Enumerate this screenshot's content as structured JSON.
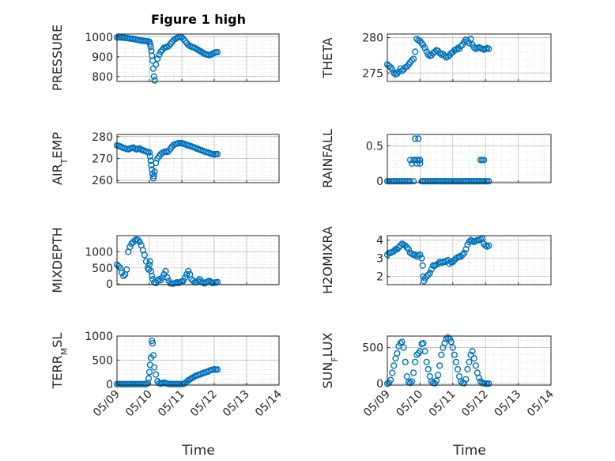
{
  "figure_title": "Figure 1 high",
  "x_axis_label": "Time",
  "x_tick_labels": [
    "05/09",
    "05/10",
    "05/11",
    "05/12",
    "05/13",
    "05/14"
  ],
  "marker_color": "#0072BD",
  "chart_data": [
    {
      "type": "scatter",
      "ylabel": "PRESSURE",
      "ylim": [
        775,
        1015
      ],
      "yticks": [
        800,
        900,
        1000
      ],
      "xlim": [
        0,
        5
      ],
      "grid": true,
      "x": [
        0.0,
        0.05,
        0.1,
        0.15,
        0.2,
        0.25,
        0.3,
        0.35,
        0.4,
        0.45,
        0.5,
        0.55,
        0.6,
        0.65,
        0.7,
        0.75,
        0.8,
        0.85,
        0.9,
        0.95,
        1.0,
        1.02,
        1.04,
        1.06,
        1.08,
        1.1,
        1.12,
        1.14,
        1.16,
        1.2,
        1.25,
        1.3,
        1.35,
        1.4,
        1.45,
        1.5,
        1.55,
        1.6,
        1.65,
        1.7,
        1.75,
        1.8,
        1.85,
        1.9,
        1.95,
        2.0,
        2.05,
        2.1,
        2.15,
        2.2,
        2.25,
        2.3,
        2.35,
        2.4,
        2.45,
        2.5,
        2.55,
        2.6,
        2.65,
        2.7,
        2.75,
        2.8,
        2.85,
        2.9,
        2.95,
        3.0,
        3.05,
        3.1
      ],
      "y": [
        998,
        998,
        998,
        997,
        997,
        996,
        995,
        994,
        992,
        991,
        990,
        989,
        987,
        985,
        983,
        982,
        981,
        980,
        979,
        978,
        976,
        965,
        950,
        930,
        905,
        880,
        840,
        800,
        780,
        860,
        890,
        910,
        925,
        935,
        945,
        948,
        950,
        955,
        965,
        975,
        985,
        990,
        995,
        998,
        1000,
        998,
        990,
        980,
        970,
        960,
        955,
        950,
        948,
        945,
        940,
        935,
        930,
        925,
        920,
        915,
        912,
        910,
        908,
        910,
        915,
        920,
        922,
        923
      ]
    },
    {
      "type": "scatter",
      "ylabel": "THETA",
      "ylim": [
        273.8,
        280.5
      ],
      "yticks": [
        275,
        280
      ],
      "xlim": [
        0,
        5
      ],
      "grid": true,
      "x": [
        0.0,
        0.05,
        0.1,
        0.15,
        0.2,
        0.25,
        0.3,
        0.35,
        0.4,
        0.45,
        0.5,
        0.55,
        0.6,
        0.65,
        0.7,
        0.75,
        0.8,
        0.85,
        0.9,
        0.95,
        1.0,
        1.05,
        1.1,
        1.15,
        1.2,
        1.25,
        1.3,
        1.35,
        1.4,
        1.45,
        1.5,
        1.55,
        1.6,
        1.65,
        1.7,
        1.75,
        1.8,
        1.85,
        1.9,
        1.95,
        2.0,
        2.05,
        2.1,
        2.15,
        2.2,
        2.25,
        2.3,
        2.35,
        2.4,
        2.45,
        2.5,
        2.55,
        2.6,
        2.65,
        2.7,
        2.75,
        2.8,
        2.85,
        2.9,
        2.95,
        3.0,
        3.05,
        3.1
      ],
      "y": [
        276.2,
        276.0,
        275.8,
        275.5,
        275.0,
        274.8,
        274.9,
        275.2,
        275.6,
        275.3,
        275.5,
        275.8,
        275.9,
        276.2,
        276.5,
        276.8,
        277.0,
        278.0,
        279.8,
        279.6,
        279.5,
        279.2,
        278.9,
        278.5,
        278.0,
        277.6,
        277.4,
        277.5,
        277.8,
        278.0,
        278.2,
        278.1,
        277.8,
        277.6,
        277.7,
        277.4,
        277.2,
        277.3,
        277.5,
        277.8,
        277.9,
        278.2,
        278.3,
        278.5,
        278.4,
        278.8,
        279.0,
        279.4,
        279.7,
        279.5,
        279.2,
        279.8,
        279.0,
        278.6,
        278.4,
        278.5,
        278.6,
        278.5,
        278.4,
        278.3,
        278.4,
        278.5,
        278.4
      ]
    },
    {
      "type": "scatter",
      "ylabel": "AIR_TEMP",
      "ylim": [
        259,
        281
      ],
      "yticks": [
        260,
        270,
        280
      ],
      "xlim": [
        0,
        5
      ],
      "grid": true,
      "x": [
        0.0,
        0.05,
        0.1,
        0.15,
        0.2,
        0.25,
        0.3,
        0.35,
        0.4,
        0.45,
        0.5,
        0.55,
        0.6,
        0.65,
        0.7,
        0.75,
        0.8,
        0.85,
        0.9,
        0.95,
        1.0,
        1.02,
        1.04,
        1.06,
        1.08,
        1.1,
        1.12,
        1.14,
        1.16,
        1.2,
        1.25,
        1.3,
        1.35,
        1.4,
        1.45,
        1.5,
        1.55,
        1.6,
        1.65,
        1.7,
        1.75,
        1.8,
        1.85,
        1.9,
        1.95,
        2.0,
        2.05,
        2.1,
        2.15,
        2.2,
        2.25,
        2.3,
        2.35,
        2.4,
        2.45,
        2.5,
        2.55,
        2.6,
        2.65,
        2.7,
        2.75,
        2.8,
        2.85,
        2.9,
        2.95,
        3.0,
        3.05,
        3.1
      ],
      "y": [
        276.0,
        275.8,
        275.5,
        275.2,
        274.8,
        274.6,
        274.4,
        274.2,
        274.5,
        274.8,
        275.0,
        274.6,
        274.2,
        274.4,
        274.6,
        274.0,
        273.8,
        273.5,
        273.2,
        273.0,
        272.8,
        271.0,
        269.0,
        267.0,
        265.0,
        263.0,
        261.0,
        262.0,
        264.0,
        268.0,
        270.0,
        271.0,
        272.0,
        272.5,
        273.0,
        273.2,
        273.0,
        273.5,
        274.5,
        275.5,
        276.2,
        276.6,
        276.8,
        277.0,
        277.0,
        277.0,
        276.8,
        276.5,
        276.2,
        276.0,
        275.8,
        275.5,
        275.2,
        275.0,
        274.6,
        274.4,
        274.0,
        273.8,
        273.5,
        273.2,
        273.0,
        272.8,
        272.5,
        272.2,
        272.0,
        271.8,
        272.0,
        272.0
      ]
    },
    {
      "type": "scatter",
      "ylabel": "RAINFALL",
      "ylim": [
        -0.02,
        0.66
      ],
      "yticks": [
        0,
        0.5
      ],
      "xlim": [
        0,
        5
      ],
      "grid": true,
      "x": [
        0.0,
        0.05,
        0.1,
        0.15,
        0.2,
        0.25,
        0.3,
        0.35,
        0.4,
        0.45,
        0.5,
        0.55,
        0.6,
        0.65,
        0.7,
        0.7,
        0.75,
        0.8,
        0.8,
        0.85,
        0.85,
        0.9,
        0.9,
        0.95,
        0.95,
        1.0,
        1.0,
        1.05,
        1.1,
        1.15,
        1.2,
        1.25,
        1.3,
        1.35,
        1.4,
        1.45,
        1.5,
        1.55,
        1.6,
        1.65,
        1.7,
        1.75,
        1.8,
        1.85,
        1.9,
        1.95,
        2.0,
        2.05,
        2.1,
        2.15,
        2.2,
        2.25,
        2.3,
        2.35,
        2.4,
        2.45,
        2.5,
        2.55,
        2.6,
        2.65,
        2.7,
        2.75,
        2.8,
        2.85,
        2.85,
        2.9,
        2.9,
        2.95,
        2.95,
        3.0,
        3.05,
        3.1
      ],
      "y": [
        0,
        0,
        0,
        0,
        0,
        0,
        0,
        0,
        0,
        0,
        0,
        0,
        0,
        0,
        0,
        0.3,
        0.25,
        0,
        0.3,
        0.3,
        0.6,
        0.25,
        0.3,
        0.3,
        0.6,
        0.25,
        0.3,
        0,
        0,
        0,
        0,
        0,
        0,
        0,
        0,
        0,
        0,
        0,
        0,
        0,
        0,
        0,
        0,
        0,
        0,
        0,
        0,
        0,
        0,
        0,
        0,
        0,
        0,
        0,
        0,
        0,
        0,
        0,
        0,
        0,
        0,
        0,
        0,
        0,
        0.3,
        0,
        0.3,
        0,
        0.3,
        0,
        0,
        0
      ]
    },
    {
      "type": "scatter",
      "ylabel": "MIXDEPTH",
      "ylim": [
        -20,
        1500
      ],
      "yticks": [
        0,
        500,
        1000
      ],
      "xlim": [
        0,
        5
      ],
      "grid": true,
      "x": [
        0.0,
        0.05,
        0.1,
        0.15,
        0.2,
        0.25,
        0.3,
        0.35,
        0.4,
        0.45,
        0.5,
        0.55,
        0.6,
        0.65,
        0.7,
        0.75,
        0.8,
        0.85,
        0.9,
        0.95,
        0.98,
        1.0,
        1.02,
        1.05,
        1.08,
        1.1,
        1.15,
        1.2,
        1.25,
        1.3,
        1.35,
        1.4,
        1.45,
        1.5,
        1.55,
        1.6,
        1.65,
        1.7,
        1.75,
        1.8,
        1.85,
        1.9,
        1.95,
        2.0,
        2.05,
        2.1,
        2.15,
        2.2,
        2.25,
        2.3,
        2.35,
        2.4,
        2.45,
        2.5,
        2.55,
        2.6,
        2.65,
        2.7,
        2.75,
        2.8,
        2.85,
        2.9,
        2.95,
        3.0,
        3.05,
        3.1
      ],
      "y": [
        600,
        550,
        500,
        350,
        250,
        300,
        450,
        1000,
        1150,
        1250,
        1300,
        1350,
        1380,
        1360,
        1300,
        1200,
        1050,
        900,
        700,
        500,
        450,
        600,
        700,
        400,
        250,
        150,
        50,
        30,
        100,
        150,
        120,
        200,
        300,
        400,
        200,
        100,
        20,
        10,
        15,
        30,
        50,
        30,
        60,
        80,
        100,
        200,
        300,
        400,
        300,
        150,
        100,
        50,
        60,
        100,
        150,
        80,
        40,
        20,
        50,
        70,
        100,
        60,
        30,
        40,
        50,
        60
      ]
    },
    {
      "type": "scatter",
      "ylabel": "H2OMIXRA",
      "ylim": [
        1.55,
        4.25
      ],
      "yticks": [
        2,
        3,
        4
      ],
      "xlim": [
        0,
        5
      ],
      "grid": true,
      "x": [
        0.0,
        0.05,
        0.1,
        0.15,
        0.2,
        0.25,
        0.3,
        0.35,
        0.4,
        0.45,
        0.5,
        0.55,
        0.6,
        0.65,
        0.7,
        0.75,
        0.8,
        0.85,
        0.9,
        0.95,
        1.0,
        1.05,
        1.08,
        1.1,
        1.12,
        1.15,
        1.2,
        1.25,
        1.3,
        1.35,
        1.4,
        1.45,
        1.5,
        1.55,
        1.6,
        1.65,
        1.7,
        1.75,
        1.8,
        1.85,
        1.9,
        1.95,
        2.0,
        2.05,
        2.1,
        2.15,
        2.2,
        2.25,
        2.3,
        2.35,
        2.4,
        2.45,
        2.5,
        2.55,
        2.6,
        2.65,
        2.7,
        2.75,
        2.8,
        2.85,
        2.9,
        2.95,
        3.0,
        3.05,
        3.1
      ],
      "y": [
        3.2,
        3.3,
        3.3,
        3.35,
        3.4,
        3.5,
        3.5,
        3.6,
        3.7,
        3.8,
        3.75,
        3.7,
        3.6,
        3.5,
        3.3,
        3.25,
        3.2,
        3.2,
        3.1,
        3.15,
        3.2,
        3.0,
        2.6,
        2.0,
        1.75,
        1.9,
        2.0,
        2.1,
        2.2,
        2.4,
        2.6,
        2.6,
        2.65,
        2.7,
        2.8,
        2.75,
        2.8,
        2.8,
        2.85,
        2.9,
        2.7,
        2.8,
        2.8,
        2.9,
        3.0,
        3.05,
        3.1,
        3.1,
        3.2,
        3.3,
        3.5,
        3.75,
        3.9,
        4.0,
        3.95,
        3.9,
        3.95,
        4.0,
        4.0,
        4.05,
        4.1,
        3.8,
        3.7,
        3.65,
        3.7
      ]
    },
    {
      "type": "scatter",
      "ylabel": "TERR_MSL",
      "ylim": [
        -20,
        1000
      ],
      "yticks": [
        0,
        500,
        1000
      ],
      "xlim": [
        0,
        5
      ],
      "grid": true,
      "x": [
        0.0,
        0.05,
        0.1,
        0.15,
        0.2,
        0.25,
        0.3,
        0.35,
        0.4,
        0.45,
        0.5,
        0.55,
        0.6,
        0.65,
        0.7,
        0.75,
        0.8,
        0.85,
        0.9,
        0.95,
        0.98,
        1.0,
        1.02,
        1.05,
        1.08,
        1.1,
        1.12,
        1.15,
        1.2,
        1.25,
        1.3,
        1.35,
        1.4,
        1.45,
        1.5,
        1.55,
        1.6,
        1.65,
        1.7,
        1.75,
        1.8,
        1.85,
        1.9,
        1.95,
        2.0,
        2.05,
        2.1,
        2.15,
        2.2,
        2.25,
        2.3,
        2.35,
        2.4,
        2.45,
        2.5,
        2.55,
        2.6,
        2.65,
        2.7,
        2.75,
        2.8,
        2.85,
        2.9,
        2.95,
        3.0,
        3.05,
        3.1
      ],
      "y": [
        0,
        0,
        0,
        0,
        0,
        0,
        0,
        0,
        0,
        0,
        0,
        0,
        0,
        0,
        0,
        0,
        0,
        0,
        0,
        20,
        120,
        250,
        400,
        550,
        900,
        850,
        600,
        350,
        200,
        60,
        20,
        10,
        20,
        30,
        20,
        10,
        5,
        0,
        0,
        0,
        0,
        0,
        0,
        0,
        0,
        5,
        20,
        50,
        80,
        100,
        120,
        140,
        160,
        180,
        190,
        200,
        210,
        230,
        240,
        250,
        260,
        280,
        290,
        300,
        310,
        300,
        305
      ]
    },
    {
      "type": "scatter",
      "ylabel": "SUN_FLUX",
      "ylim": [
        -20,
        660
      ],
      "yticks": [
        0,
        500
      ],
      "xlim": [
        0,
        5
      ],
      "grid": true,
      "x": [
        0.0,
        0.05,
        0.1,
        0.15,
        0.2,
        0.25,
        0.3,
        0.35,
        0.4,
        0.45,
        0.5,
        0.55,
        0.6,
        0.65,
        0.7,
        0.75,
        0.8,
        0.85,
        0.9,
        0.95,
        1.0,
        1.05,
        1.1,
        1.15,
        1.2,
        1.25,
        1.3,
        1.35,
        1.4,
        1.45,
        1.5,
        1.55,
        1.6,
        1.65,
        1.7,
        1.75,
        1.8,
        1.85,
        1.9,
        1.95,
        2.0,
        2.05,
        2.1,
        2.15,
        2.2,
        2.25,
        2.3,
        2.35,
        2.4,
        2.45,
        2.5,
        2.55,
        2.6,
        2.65,
        2.7,
        2.75,
        2.8,
        2.85,
        2.9,
        2.95,
        3.0,
        3.05,
        3.1
      ],
      "y": [
        0,
        10,
        50,
        150,
        250,
        350,
        420,
        520,
        560,
        580,
        500,
        300,
        100,
        20,
        10,
        30,
        150,
        300,
        400,
        420,
        450,
        550,
        560,
        450,
        300,
        200,
        100,
        30,
        10,
        5,
        40,
        120,
        250,
        400,
        500,
        560,
        620,
        640,
        620,
        580,
        500,
        400,
        300,
        200,
        100,
        30,
        10,
        5,
        60,
        200,
        300,
        400,
        450,
        350,
        250,
        150,
        80,
        30,
        10,
        5,
        0,
        0,
        0
      ]
    }
  ]
}
